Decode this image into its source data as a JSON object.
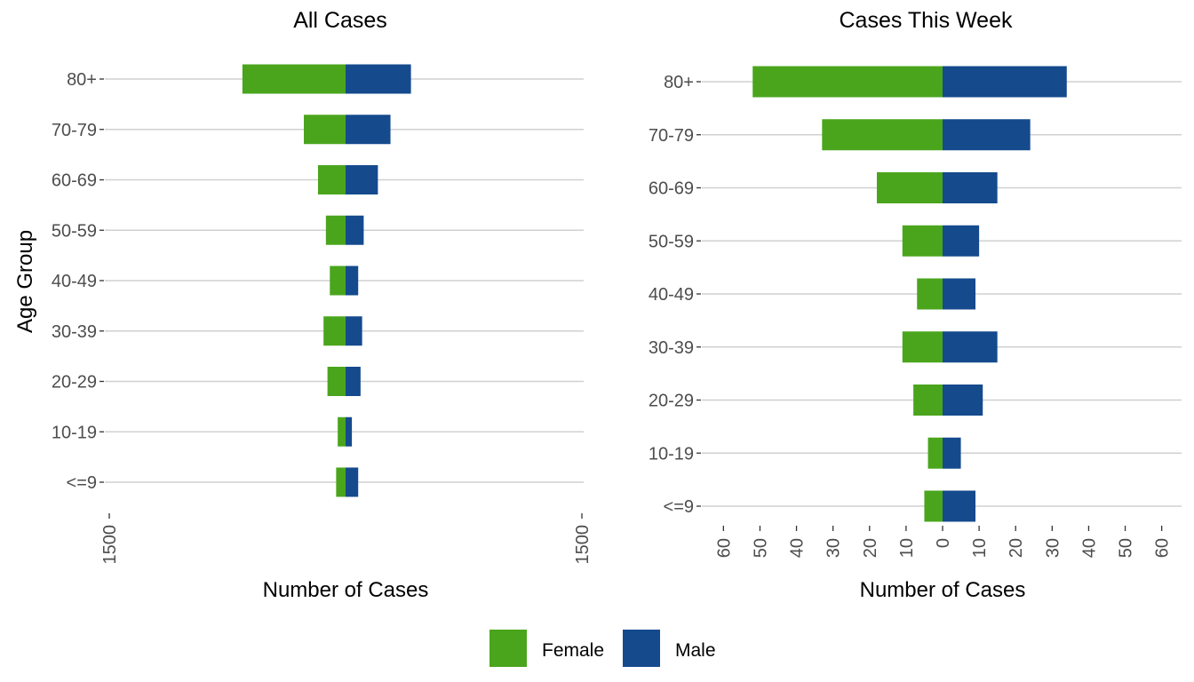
{
  "chart_data": [
    {
      "type": "bar",
      "orientation": "horizontal-diverging",
      "title": "All Cases",
      "xlabel": "Number of Cases",
      "ylabel": "Age Group",
      "categories": [
        "<=9",
        "10-19",
        "20-29",
        "30-39",
        "40-49",
        "50-59",
        "60-69",
        "70-79",
        "80+"
      ],
      "series": [
        {
          "name": "Female",
          "values": [
            60,
            50,
            115,
            140,
            100,
            125,
            175,
            265,
            655
          ]
        },
        {
          "name": "Male",
          "values": [
            80,
            40,
            95,
            105,
            80,
            115,
            205,
            285,
            415
          ]
        }
      ],
      "xlim": [
        -1500,
        1500
      ],
      "x_ticks": [
        -1500,
        1500
      ],
      "x_tick_labels": [
        "1500",
        "1500"
      ],
      "grid": true
    },
    {
      "type": "bar",
      "orientation": "horizontal-diverging",
      "title": "Cases This Week",
      "xlabel": "Number of Cases",
      "ylabel": "",
      "categories": [
        "<=9",
        "10-19",
        "20-29",
        "30-39",
        "40-49",
        "50-59",
        "60-69",
        "70-79",
        "80+"
      ],
      "series": [
        {
          "name": "Female",
          "values": [
            5,
            4,
            8,
            11,
            7,
            11,
            18,
            33,
            52
          ]
        },
        {
          "name": "Male",
          "values": [
            9,
            5,
            11,
            15,
            9,
            10,
            15,
            24,
            34
          ]
        }
      ],
      "xlim": [
        -63,
        63
      ],
      "x_ticks": [
        -60,
        -50,
        -40,
        -30,
        -20,
        -10,
        0,
        10,
        20,
        30,
        40,
        50,
        60
      ],
      "x_tick_labels": [
        "60",
        "50",
        "40",
        "30",
        "20",
        "10",
        "0",
        "10",
        "20",
        "30",
        "40",
        "50",
        "60"
      ],
      "grid": true
    }
  ],
  "legend": {
    "items": [
      {
        "label": "Female",
        "color": "#4aa51c"
      },
      {
        "label": "Male",
        "color": "#154a8d"
      }
    ]
  },
  "colors": {
    "female": "#4aa51c",
    "male": "#154a8d",
    "grid": "#d0d0d0",
    "tick_text": "#4d4d4d"
  }
}
